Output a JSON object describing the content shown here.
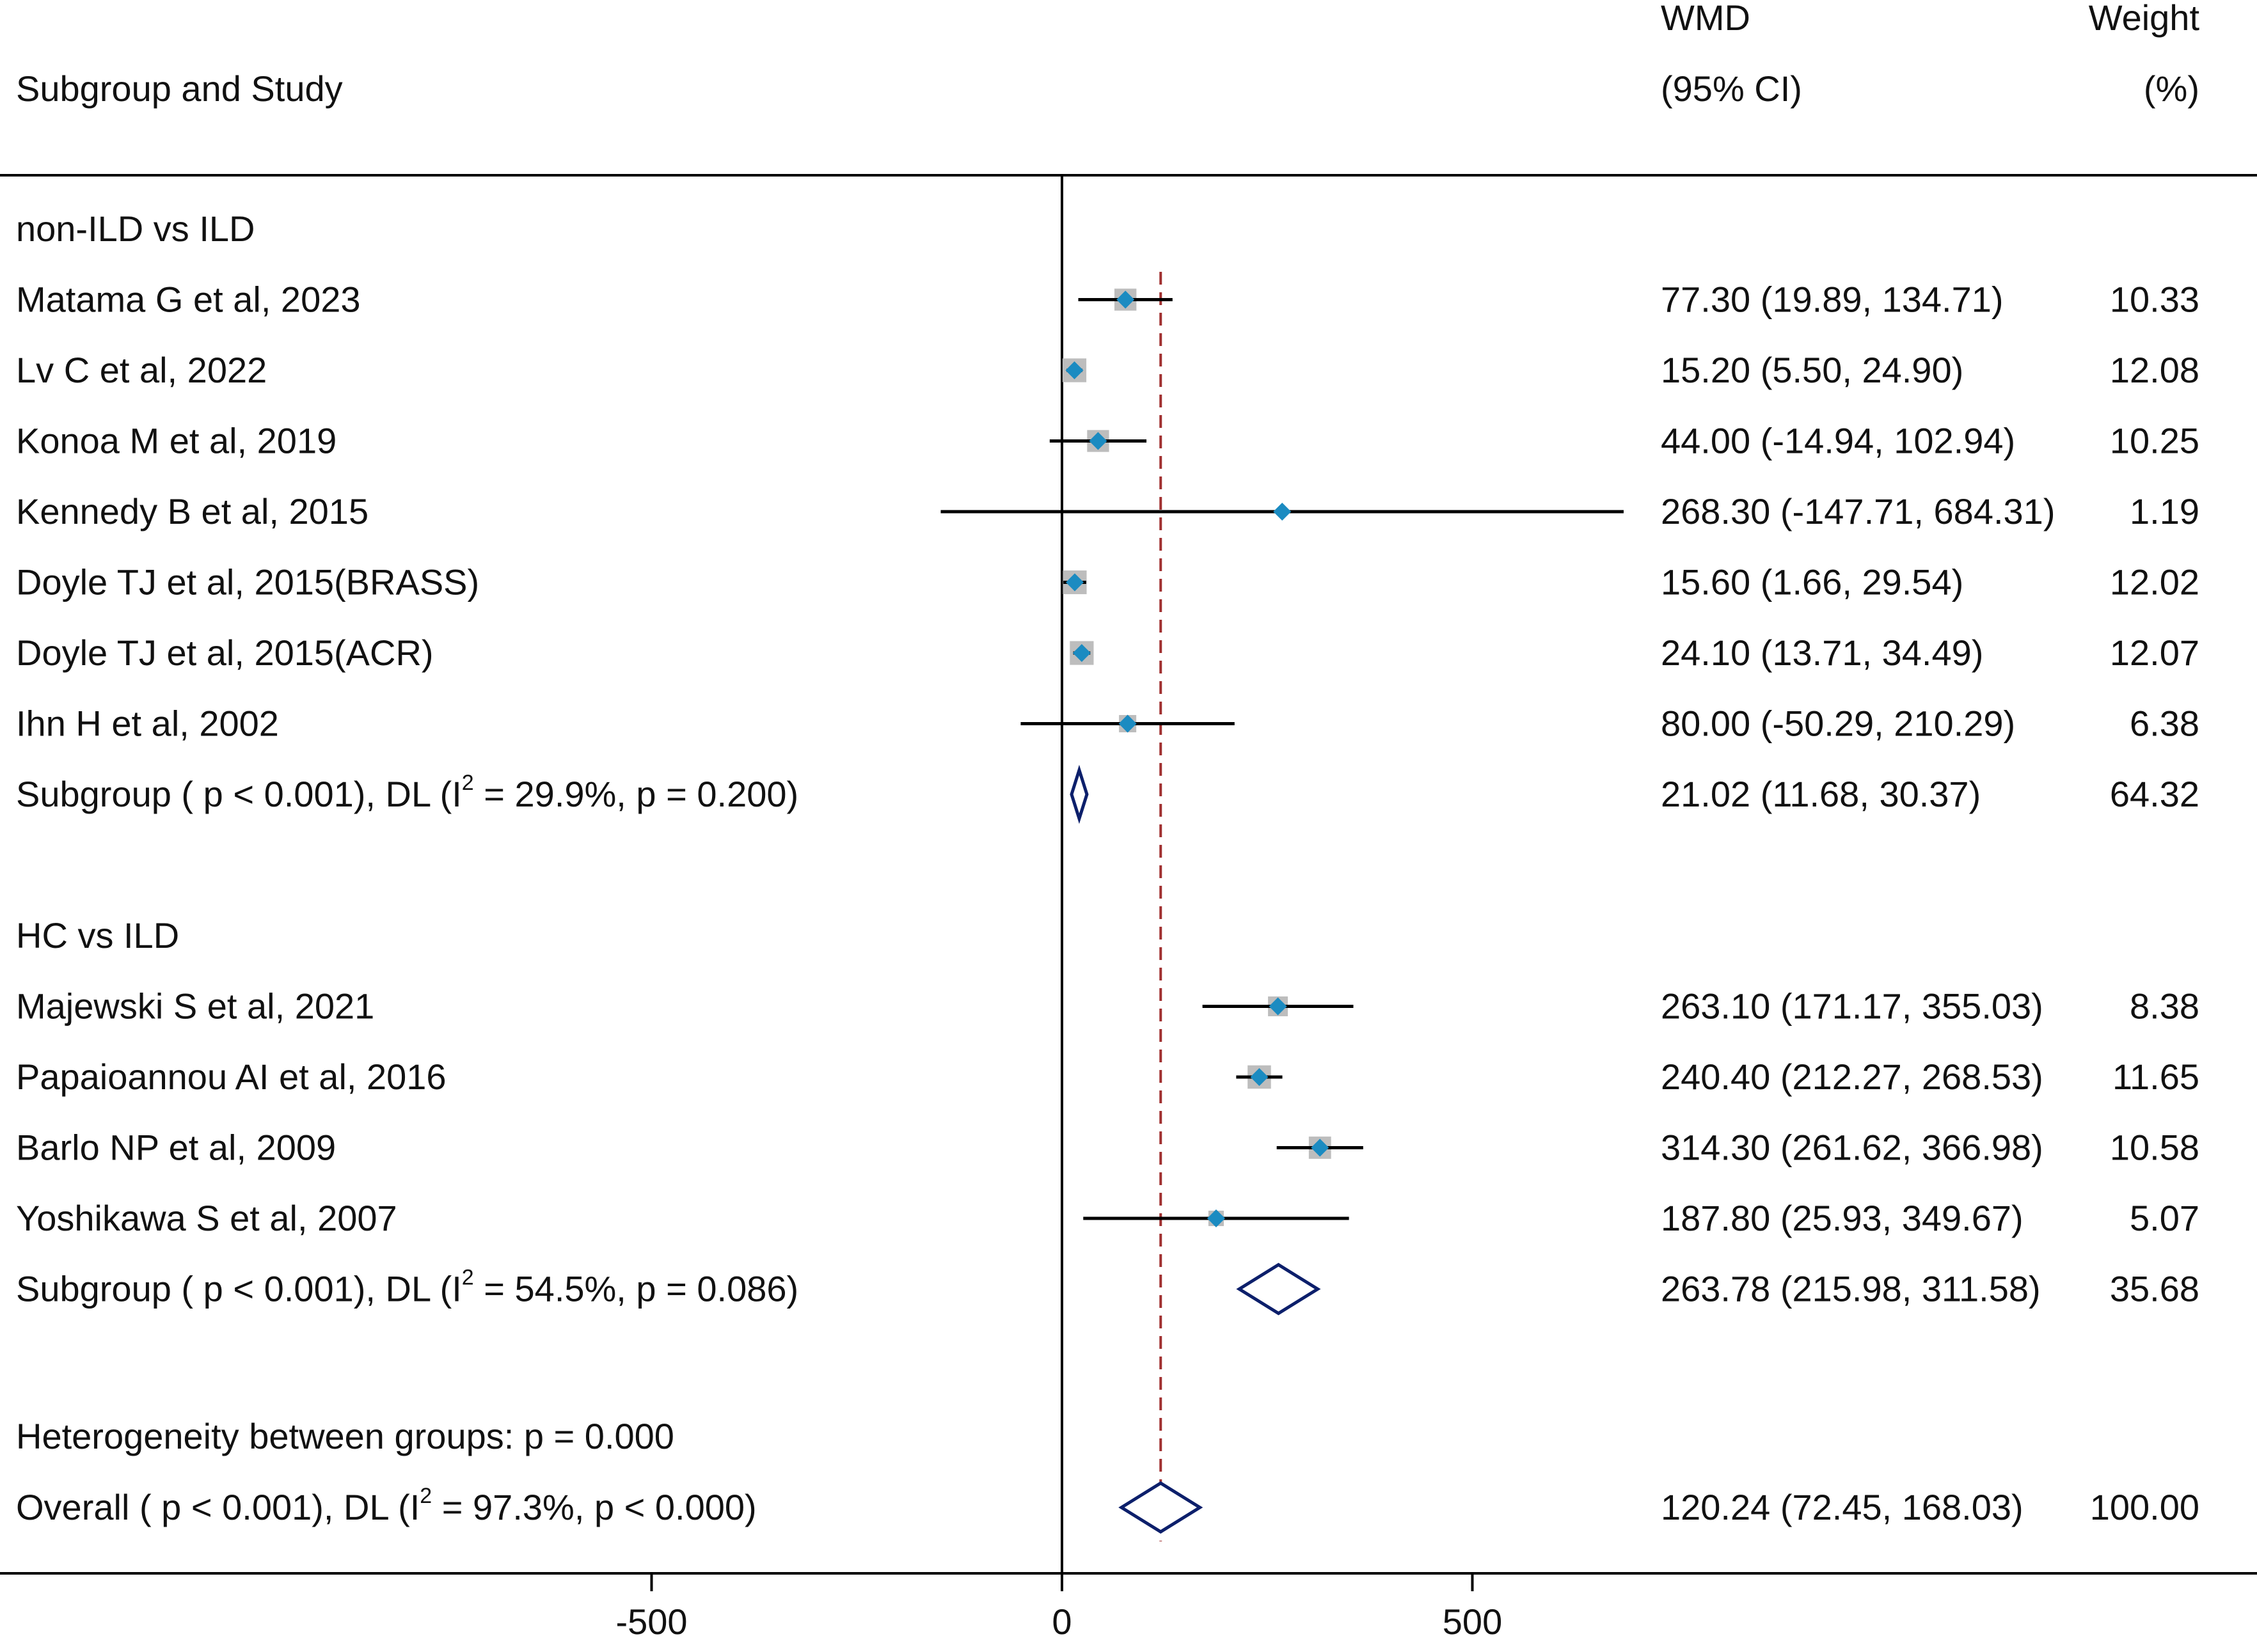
{
  "header": {
    "study_col": "Subgroup and Study",
    "wmd_line1": "WMD",
    "wmd_line2": "(95% CI)",
    "weight_line1": "Weight",
    "weight_line2": "(%)"
  },
  "footer": {
    "heterogeneity": "Heterogeneity between groups: p = 0.000"
  },
  "colors": {
    "box": "#bdbdbd",
    "point": "#1b8bc1",
    "diamond": "#0c1f6b",
    "ref_line": "#a03030",
    "ci_line": "#000000"
  },
  "chart_data": {
    "type": "forest",
    "measure": "WMD",
    "xlim": [
      -1300,
      1450
    ],
    "xticks": [
      -500,
      0,
      500
    ],
    "null_value": 0,
    "overall_line": 120.24,
    "groups": [
      {
        "title": "non-ILD vs ILD",
        "studies": [
          {
            "label": "Matama G et al, 2023",
            "est": 77.3,
            "lo": 19.89,
            "hi": 134.71,
            "weight": 10.33,
            "ci_text": "77.30 (19.89, 134.71)",
            "weight_text": "10.33"
          },
          {
            "label": "Lv C et al, 2022",
            "est": 15.2,
            "lo": 5.5,
            "hi": 24.9,
            "weight": 12.08,
            "ci_text": "15.20 (5.50, 24.90)",
            "weight_text": "12.08"
          },
          {
            "label": "Konoa M et al, 2019",
            "est": 44.0,
            "lo": -14.94,
            "hi": 102.94,
            "weight": 10.25,
            "ci_text": "44.00 (-14.94, 102.94)",
            "weight_text": "10.25"
          },
          {
            "label": "Kennedy B et al, 2015",
            "est": 268.3,
            "lo": -147.71,
            "hi": 684.31,
            "weight": 1.19,
            "ci_text": "268.30 (-147.71, 684.31)",
            "weight_text": "1.19"
          },
          {
            "label": "Doyle TJ et al, 2015(BRASS)",
            "est": 15.6,
            "lo": 1.66,
            "hi": 29.54,
            "weight": 12.02,
            "ci_text": "15.60 (1.66, 29.54)",
            "weight_text": "12.02"
          },
          {
            "label": "Doyle TJ et al, 2015(ACR)",
            "est": 24.1,
            "lo": 13.71,
            "hi": 34.49,
            "weight": 12.07,
            "ci_text": "24.10 (13.71, 34.49)",
            "weight_text": "12.07"
          },
          {
            "label": "Ihn H et al, 2002",
            "est": 80.0,
            "lo": -50.29,
            "hi": 210.29,
            "weight": 6.38,
            "ci_text": "80.00 (-50.29, 210.29)",
            "weight_text": "6.38"
          }
        ],
        "subtotal": {
          "label_pre": "Subgroup ( p < 0.001), DL (I",
          "sup": "2",
          "label_post": " = 29.9%, p = 0.200)",
          "est": 21.02,
          "lo": 11.68,
          "hi": 30.37,
          "weight": 64.32,
          "ci_text": "21.02 (11.68, 30.37)",
          "weight_text": "64.32"
        }
      },
      {
        "title": "HC vs ILD",
        "studies": [
          {
            "label": "Majewski S et al, 2021",
            "est": 263.1,
            "lo": 171.17,
            "hi": 355.03,
            "weight": 8.38,
            "ci_text": "263.10 (171.17, 355.03)",
            "weight_text": "8.38"
          },
          {
            "label": "Papaioannou AI et al, 2016",
            "est": 240.4,
            "lo": 212.27,
            "hi": 268.53,
            "weight": 11.65,
            "ci_text": "240.40 (212.27, 268.53)",
            "weight_text": "11.65"
          },
          {
            "label": "Barlo NP et al, 2009",
            "est": 314.3,
            "lo": 261.62,
            "hi": 366.98,
            "weight": 10.58,
            "ci_text": "314.30 (261.62, 366.98)",
            "weight_text": "10.58"
          },
          {
            "label": "Yoshikawa S et al, 2007",
            "est": 187.8,
            "lo": 25.93,
            "hi": 349.67,
            "weight": 5.07,
            "ci_text": "187.80 (25.93, 349.67)",
            "weight_text": "5.07"
          }
        ],
        "subtotal": {
          "label_pre": "Subgroup ( p < 0.001), DL (I",
          "sup": "2",
          "label_post": " = 54.5%, p = 0.086)",
          "est": 263.78,
          "lo": 215.98,
          "hi": 311.58,
          "weight": 35.68,
          "ci_text": "263.78 (215.98, 311.58)",
          "weight_text": "35.68"
        }
      }
    ],
    "overall": {
      "label_pre": "Overall ( p < 0.001), DL (I",
      "sup": "2",
      "label_post": " = 97.3%, p < 0.000)",
      "est": 120.24,
      "lo": 72.45,
      "hi": 168.03,
      "weight": 100.0,
      "ci_text": "120.24 (72.45, 168.03)",
      "weight_text": "100.00"
    }
  }
}
